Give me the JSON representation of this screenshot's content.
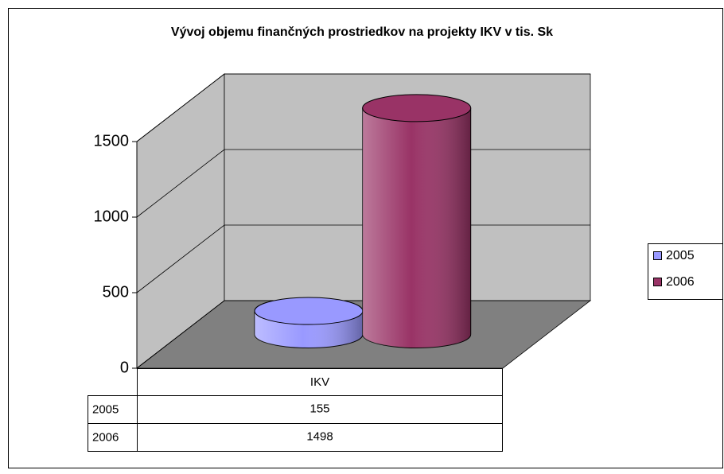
{
  "chart_data": {
    "type": "cylinder",
    "title": "Vývoj objemu finančných prostriedkov na projekty IKV v tis. Sk",
    "categories": [
      "IKV"
    ],
    "series": [
      {
        "name": "2005",
        "color": "#9999ff",
        "values": [
          155
        ]
      },
      {
        "name": "2006",
        "color": "#993366",
        "values": [
          1498
        ]
      }
    ],
    "ylim": [
      0,
      1500
    ],
    "yticks": [
      0,
      500,
      1000,
      1500
    ],
    "grid": true,
    "legend": "right"
  }
}
